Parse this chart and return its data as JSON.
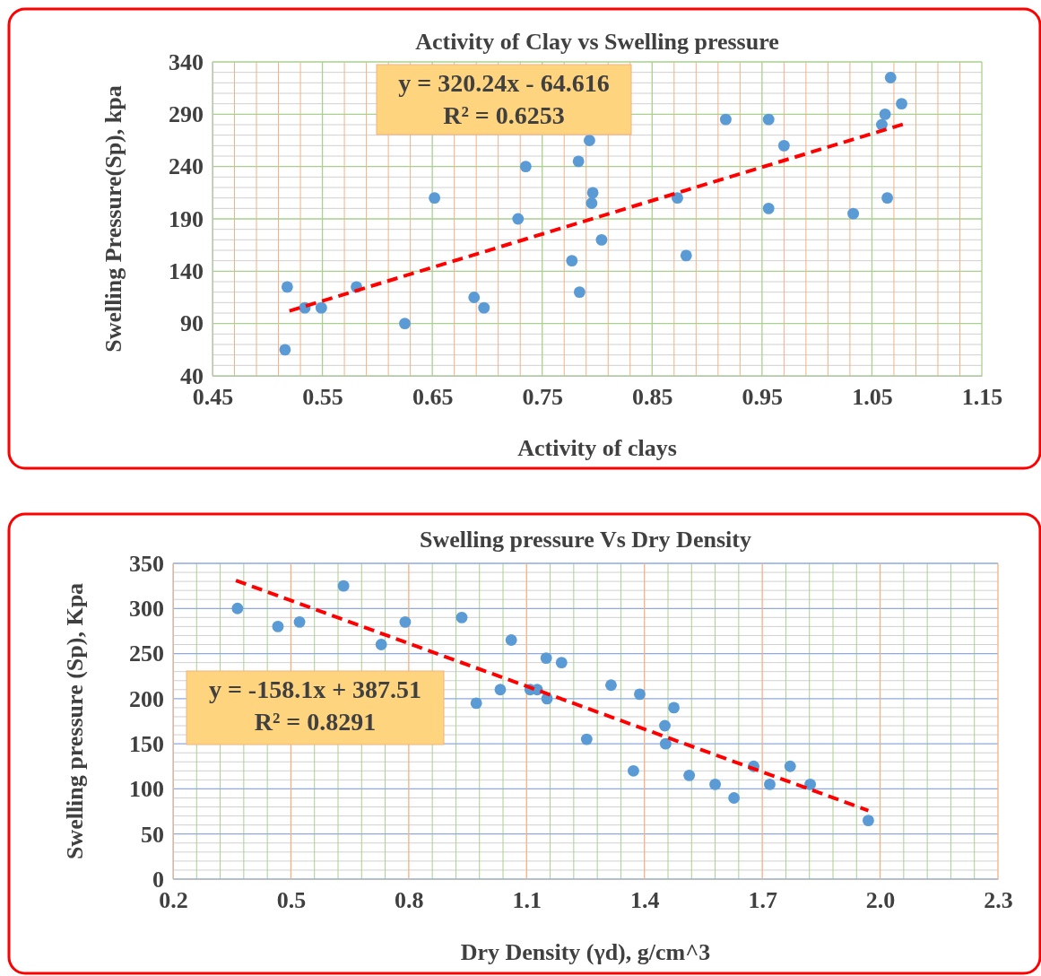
{
  "chart_data": [
    {
      "type": "scatter",
      "title": "Activity of Clay vs Swelling pressure",
      "xlabel": "Activity of clays",
      "ylabel": "Swelling Pressure(Sp), kpa",
      "annotations": [
        "y = 320.24x - 64.616",
        "R² = 0.6253"
      ],
      "xlim": [
        0.45,
        1.15
      ],
      "xticks": [
        0.45,
        {
          "value": 0.47,
          "label": null
        },
        {
          "value": 0.49,
          "label": null
        },
        {
          "value": 0.51,
          "label": null
        },
        {
          "value": 0.53,
          "label": null
        },
        0.55,
        {
          "value": 0.57,
          "label": null
        },
        {
          "value": 0.59,
          "label": null
        },
        {
          "value": 0.61,
          "label": null
        },
        {
          "value": 0.63,
          "label": null
        },
        0.65,
        {
          "value": 0.67,
          "label": null
        },
        {
          "value": 0.69,
          "label": null
        },
        {
          "value": 0.71,
          "label": null
        },
        {
          "value": 0.73,
          "label": null
        },
        0.75,
        {
          "value": 0.77,
          "label": null
        },
        {
          "value": 0.79,
          "label": null
        },
        {
          "value": 0.81,
          "label": null
        },
        {
          "value": 0.83,
          "label": null
        },
        0.85,
        {
          "value": 0.87,
          "label": null
        },
        {
          "value": 0.89,
          "label": null
        },
        {
          "value": 0.91,
          "label": null
        },
        {
          "value": 0.93,
          "label": null
        },
        0.95,
        {
          "value": 0.97,
          "label": null
        },
        {
          "value": 0.99,
          "label": null
        },
        {
          "value": 1.01,
          "label": null
        },
        {
          "value": 1.03,
          "label": null
        },
        1.05,
        {
          "value": 1.07,
          "label": null
        },
        {
          "value": 1.09,
          "label": null
        },
        {
          "value": 1.11,
          "label": null
        },
        {
          "value": 1.13,
          "label": null
        },
        1.15
      ],
      "ylim": [
        40,
        340
      ],
      "yticks": [
        40,
        {
          "value": 50,
          "label": null
        },
        {
          "value": 60,
          "label": null
        },
        {
          "value": 70,
          "label": null
        },
        {
          "value": 80,
          "label": null
        },
        90,
        {
          "value": 100,
          "label": null
        },
        {
          "value": 110,
          "label": null
        },
        {
          "value": 120,
          "label": null
        },
        {
          "value": 130,
          "label": null
        },
        140,
        {
          "value": 150,
          "label": null
        },
        {
          "value": 160,
          "label": null
        },
        {
          "value": 170,
          "label": null
        },
        {
          "value": 180,
          "label": null
        },
        190,
        {
          "value": 200,
          "label": null
        },
        {
          "value": 210,
          "label": null
        },
        {
          "value": 220,
          "label": null
        },
        {
          "value": 230,
          "label": null
        },
        240,
        {
          "value": 250,
          "label": null
        },
        {
          "value": 260,
          "label": null
        },
        {
          "value": 270,
          "label": null
        },
        {
          "value": 280,
          "label": null
        },
        290,
        {
          "value": 300,
          "label": null
        },
        {
          "value": 310,
          "label": null
        },
        {
          "value": 320,
          "label": null
        },
        {
          "value": 330,
          "label": null
        },
        340
      ],
      "grid": true,
      "series": [
        {
          "type": "scatter",
          "color": "#5b9bd5",
          "marker": "circle",
          "x": [
            0.516,
            0.518,
            0.534,
            0.549,
            0.581,
            0.625,
            0.652,
            0.688,
            0.697,
            0.728,
            0.735,
            0.777,
            0.783,
            0.784,
            0.793,
            0.795,
            0.796,
            0.804,
            0.873,
            0.881,
            0.917,
            0.956,
            0.956,
            0.97,
            1.033,
            1.059,
            1.062,
            1.064,
            1.067,
            1.077
          ],
          "values": [
            65,
            125,
            105,
            105,
            125,
            90,
            210,
            115,
            105,
            190,
            240,
            150,
            245,
            120,
            265,
            205,
            215,
            170,
            210,
            155,
            285,
            285,
            200,
            260,
            195,
            280,
            290,
            210,
            325,
            300
          ]
        },
        {
          "type": "line",
          "color": "#ff0000",
          "line_style": "dashed",
          "x": [
            0.52,
            1.08
          ],
          "values": [
            102,
            281
          ]
        }
      ]
    },
    {
      "type": "scatter",
      "title": "Swelling pressure Vs Dry Density",
      "xlabel": "Dry Density (γd), g/cm^3",
      "ylabel": "Swelling pressure (Sp), Kpa",
      "annotations": [
        "y = -158.1x + 387.51",
        "R² = 0.8291"
      ],
      "xlim": [
        0.2,
        2.3
      ],
      "xticks": [
        0.2,
        {
          "value": 0.26,
          "label": null
        },
        {
          "value": 0.32,
          "label": null
        },
        {
          "value": 0.38,
          "label": null
        },
        {
          "value": 0.44,
          "label": null
        },
        0.5,
        {
          "value": 0.56,
          "label": null
        },
        {
          "value": 0.62,
          "label": null
        },
        {
          "value": 0.68,
          "label": null
        },
        {
          "value": 0.74,
          "label": null
        },
        0.8,
        {
          "value": 0.86,
          "label": null
        },
        {
          "value": 0.92,
          "label": null
        },
        {
          "value": 0.98,
          "label": null
        },
        {
          "value": 1.04,
          "label": null
        },
        1.1,
        {
          "value": 1.16,
          "label": null
        },
        {
          "value": 1.22,
          "label": null
        },
        {
          "value": 1.28,
          "label": null
        },
        {
          "value": 1.34,
          "label": null
        },
        1.4,
        {
          "value": 1.46,
          "label": null
        },
        {
          "value": 1.52,
          "label": null
        },
        {
          "value": 1.58,
          "label": null
        },
        {
          "value": 1.64,
          "label": null
        },
        1.7,
        {
          "value": 1.76,
          "label": null
        },
        {
          "value": 1.82,
          "label": null
        },
        {
          "value": 1.88,
          "label": null
        },
        {
          "value": 1.94,
          "label": null
        },
        {
          "value": 2,
          "label": "2.0"
        },
        {
          "value": 2.06,
          "label": null
        },
        {
          "value": 2.12,
          "label": null
        },
        {
          "value": 2.18,
          "label": null
        },
        {
          "value": 2.24,
          "label": null
        },
        2.3
      ],
      "ylim": [
        0,
        350
      ],
      "yticks": [
        0,
        {
          "value": 10,
          "label": null
        },
        {
          "value": 20,
          "label": null
        },
        {
          "value": 30,
          "label": null
        },
        {
          "value": 40,
          "label": null
        },
        50,
        {
          "value": 60,
          "label": null
        },
        {
          "value": 70,
          "label": null
        },
        {
          "value": 80,
          "label": null
        },
        {
          "value": 90,
          "label": null
        },
        100,
        {
          "value": 110,
          "label": null
        },
        {
          "value": 120,
          "label": null
        },
        {
          "value": 130,
          "label": null
        },
        {
          "value": 140,
          "label": null
        },
        150,
        {
          "value": 160,
          "label": null
        },
        {
          "value": 170,
          "label": null
        },
        {
          "value": 180,
          "label": null
        },
        {
          "value": 190,
          "label": null
        },
        200,
        {
          "value": 210,
          "label": null
        },
        {
          "value": 220,
          "label": null
        },
        {
          "value": 230,
          "label": null
        },
        {
          "value": 240,
          "label": null
        },
        250,
        {
          "value": 260,
          "label": null
        },
        {
          "value": 270,
          "label": null
        },
        {
          "value": 280,
          "label": null
        },
        {
          "value": 290,
          "label": null
        },
        300,
        {
          "value": 310,
          "label": null
        },
        {
          "value": 320,
          "label": null
        },
        {
          "value": 330,
          "label": null
        },
        {
          "value": 340,
          "label": null
        },
        350
      ],
      "grid": true,
      "series": [
        {
          "type": "scatter",
          "color": "#5b9bd5",
          "marker": "circle",
          "x": [
            0.364,
            0.467,
            0.522,
            0.634,
            0.73,
            0.791,
            0.935,
            0.972,
            1.033,
            1.061,
            1.109,
            1.127,
            1.15,
            1.152,
            1.189,
            1.253,
            1.315,
            1.372,
            1.388,
            1.452,
            1.454,
            1.475,
            1.514,
            1.58,
            1.628,
            1.678,
            1.719,
            1.771,
            1.822,
            1.97
          ],
          "values": [
            300,
            280,
            285,
            325,
            260,
            285,
            290,
            195,
            210,
            265,
            210,
            210,
            245,
            200,
            240,
            155,
            215,
            120,
            205,
            170,
            150,
            190,
            115,
            105,
            90,
            125,
            105,
            125,
            105,
            65
          ]
        },
        {
          "type": "line",
          "color": "#ff0000",
          "line_style": "dashed",
          "x": [
            0.36,
            1.97
          ],
          "values": [
            331,
            76
          ]
        }
      ]
    }
  ]
}
